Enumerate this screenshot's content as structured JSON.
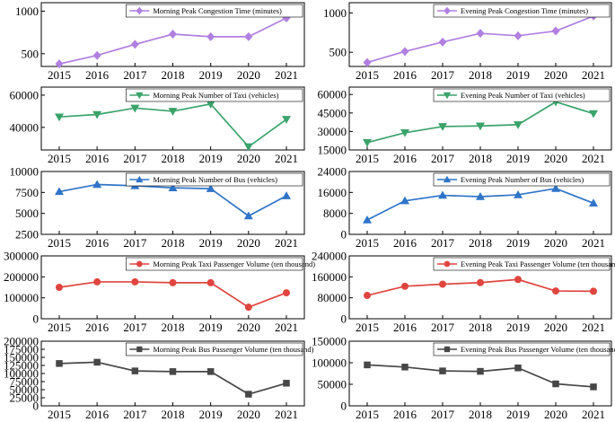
{
  "chart_data": [
    {
      "type": "line",
      "x": [
        2015,
        2016,
        2017,
        2018,
        2019,
        2020,
        2021
      ],
      "series": [
        {
          "name": "Morning Peak Congestion Time (minutes)",
          "values": [
            380,
            480,
            610,
            730,
            700,
            700,
            920
          ]
        }
      ],
      "ylim": [
        350,
        1100
      ],
      "yticks": [
        500,
        1000
      ],
      "ytick_labels": [
        "500",
        "1000"
      ],
      "color": "#b07fe0",
      "marker": "diamond",
      "legend_position": "top-right",
      "grid": false
    },
    {
      "type": "line",
      "x": [
        2015,
        2016,
        2017,
        2018,
        2019,
        2020,
        2021
      ],
      "series": [
        {
          "name": "Evening Peak Congestion Time (minutes)",
          "values": [
            370,
            510,
            630,
            740,
            710,
            770,
            960
          ]
        }
      ],
      "ylim": [
        320,
        1130
      ],
      "yticks": [
        500,
        1000
      ],
      "ytick_labels": [
        "500",
        "1000"
      ],
      "color": "#b07fe0",
      "marker": "diamond",
      "legend_position": "top-right",
      "grid": false
    },
    {
      "type": "line",
      "x": [
        2015,
        2016,
        2017,
        2018,
        2019,
        2020,
        2021
      ],
      "series": [
        {
          "name": "Morning Peak Number of Taxi (vehicles)",
          "values": [
            46500,
            48000,
            52000,
            50000,
            54500,
            28000,
            45000
          ]
        }
      ],
      "ylim": [
        26000,
        65000
      ],
      "yticks": [
        40000,
        60000
      ],
      "ytick_labels": [
        "40000",
        "60000"
      ],
      "color": "#3aa36a",
      "marker": "triangle-down",
      "legend_position": "top-right",
      "grid": false
    },
    {
      "type": "line",
      "x": [
        2015,
        2016,
        2017,
        2018,
        2019,
        2020,
        2021
      ],
      "series": [
        {
          "name": "Evening Peak Number of Taxi (vehicles)",
          "values": [
            21000,
            29000,
            34000,
            34500,
            35500,
            54000,
            44500
          ]
        }
      ],
      "ylim": [
        15000,
        66000
      ],
      "yticks": [
        15000,
        30000,
        45000,
        60000
      ],
      "ytick_labels": [
        "15000",
        "30000",
        "45000",
        "60000"
      ],
      "color": "#3aa36a",
      "marker": "triangle-down",
      "legend_position": "top-right",
      "grid": false
    },
    {
      "type": "line",
      "x": [
        2015,
        2016,
        2017,
        2018,
        2019,
        2020,
        2021
      ],
      "series": [
        {
          "name": "Morning Peak Number of Bus (vehicles)",
          "values": [
            7600,
            8450,
            8300,
            8050,
            7950,
            4700,
            7100
          ]
        }
      ],
      "ylim": [
        2500,
        10000
      ],
      "yticks": [
        2500,
        5000,
        7500,
        10000
      ],
      "ytick_labels": [
        "2500",
        "5000",
        "7500",
        "10000"
      ],
      "color": "#2f74c8",
      "marker": "triangle-up",
      "legend_position": "top-right",
      "grid": false
    },
    {
      "type": "line",
      "x": [
        2015,
        2016,
        2017,
        2018,
        2019,
        2020,
        2021
      ],
      "series": [
        {
          "name": "Evening Peak Number of Bus (vehicles)",
          "values": [
            5500,
            12800,
            14900,
            14400,
            15100,
            17500,
            11900
          ]
        }
      ],
      "ylim": [
        0,
        24000
      ],
      "yticks": [
        0,
        8000,
        16000,
        24000
      ],
      "ytick_labels": [
        "0",
        "8000",
        "16000",
        "24000"
      ],
      "color": "#2f74c8",
      "marker": "triangle-up",
      "legend_position": "top-right",
      "grid": false
    },
    {
      "type": "line",
      "x": [
        2015,
        2016,
        2017,
        2018,
        2019,
        2020,
        2021
      ],
      "series": [
        {
          "name": "Morning Peak Taxi Passenger Volume (ten thousand)",
          "values": [
            150000,
            176000,
            176000,
            172000,
            172000,
            55000,
            124000
          ]
        }
      ],
      "ylim": [
        0,
        300000
      ],
      "yticks": [
        0,
        100000,
        200000,
        300000
      ],
      "ytick_labels": [
        "0",
        "100000",
        "200000",
        "300000"
      ],
      "color": "#e0453f",
      "marker": "circle",
      "legend_position": "top-right",
      "grid": false
    },
    {
      "type": "line",
      "x": [
        2015,
        2016,
        2017,
        2018,
        2019,
        2020,
        2021
      ],
      "series": [
        {
          "name": "Evening Peak Taxi Passenger Volume (ten thousand)",
          "values": [
            89000,
            124000,
            132000,
            138000,
            150000,
            106000,
            105000
          ]
        }
      ],
      "ylim": [
        0,
        240000
      ],
      "yticks": [
        0,
        80000,
        160000,
        240000
      ],
      "ytick_labels": [
        "0",
        "80000",
        "160000",
        "240000"
      ],
      "color": "#e0453f",
      "marker": "circle",
      "legend_position": "top-right",
      "grid": false
    },
    {
      "type": "line",
      "x": [
        2015,
        2016,
        2017,
        2018,
        2019,
        2020,
        2021
      ],
      "series": [
        {
          "name": "Morning Peak Bus Passenger Volume (ten thousand)",
          "values": [
            131000,
            135000,
            108000,
            106000,
            106000,
            36000,
            70000
          ]
        }
      ],
      "ylim": [
        0,
        200000
      ],
      "yticks": [
        0,
        25000,
        50000,
        75000,
        100000,
        125000,
        150000,
        175000,
        200000
      ],
      "ytick_labels": [
        "0",
        "25000",
        "50000",
        "75000",
        "100000",
        "125000",
        "150000",
        "175000",
        "200000"
      ],
      "color": "#474747",
      "marker": "square",
      "legend_position": "top-right",
      "grid": false
    },
    {
      "type": "line",
      "x": [
        2015,
        2016,
        2017,
        2018,
        2019,
        2020,
        2021
      ],
      "series": [
        {
          "name": "Evening Peak Bus Passenger Volume (ten thousand)",
          "values": [
            95000,
            90000,
            81000,
            80000,
            88000,
            51000,
            44000
          ]
        }
      ],
      "ylim": [
        0,
        150000
      ],
      "yticks": [
        0,
        50000,
        100000,
        150000
      ],
      "ytick_labels": [
        "0",
        "50000",
        "100000",
        "150000"
      ],
      "color": "#474747",
      "marker": "square",
      "legend_position": "top-right",
      "grid": false
    }
  ]
}
